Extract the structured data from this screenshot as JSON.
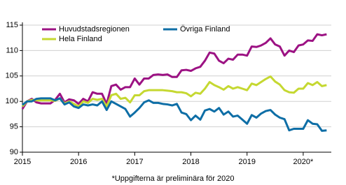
{
  "chart_data": {
    "type": "line",
    "footnote": "*Uppgifterna är preliminära för 2020",
    "x": [
      2015,
      2015.083,
      2015.167,
      2015.25,
      2015.333,
      2015.417,
      2015.5,
      2015.583,
      2015.667,
      2015.75,
      2015.833,
      2015.917,
      2016,
      2016.083,
      2016.167,
      2016.25,
      2016.333,
      2016.417,
      2016.5,
      2016.583,
      2016.667,
      2016.75,
      2016.833,
      2016.917,
      2017,
      2017.083,
      2017.167,
      2017.25,
      2017.333,
      2017.417,
      2017.5,
      2017.583,
      2017.667,
      2017.75,
      2017.833,
      2017.917,
      2018,
      2018.083,
      2018.167,
      2018.25,
      2018.333,
      2018.417,
      2018.5,
      2018.583,
      2018.667,
      2018.75,
      2018.833,
      2018.917,
      2019,
      2019.083,
      2019.167,
      2019.25,
      2019.333,
      2019.417,
      2019.5,
      2019.583,
      2019.667,
      2019.75,
      2019.833,
      2019.917,
      2020,
      2020.083,
      2020.167,
      2020.25,
      2020.333,
      2020.417
    ],
    "xlim": [
      2015,
      2020.5
    ],
    "xticks": [
      2015,
      2016,
      2017,
      2018,
      2019,
      {
        "value": 2020,
        "label": "2020*"
      }
    ],
    "ylim": [
      90,
      115
    ],
    "yticks": [
      90,
      95,
      100,
      105,
      110,
      115
    ],
    "grid": true,
    "legend": "upper left",
    "series": [
      {
        "name": "Huvudstadsregionen",
        "color": "#9c1283",
        "values": [
          98.5,
          100,
          100.5,
          99.8,
          99.6,
          99.6,
          99.6,
          100.3,
          101.5,
          99.8,
          100.4,
          100.2,
          99.5,
          100.5,
          100,
          101.8,
          101.5,
          101.5,
          99.5,
          103,
          103.3,
          102.3,
          102.8,
          102.8,
          104.5,
          103.3,
          104.5,
          104.5,
          105.2,
          105.3,
          105.2,
          105.3,
          104.8,
          104.8,
          106.1,
          106.2,
          106,
          106.5,
          106.8,
          108,
          109.6,
          109.4,
          108,
          107.5,
          108.4,
          108.2,
          109.2,
          109.2,
          109,
          110.8,
          110.7,
          111,
          111.5,
          112.4,
          111.2,
          110.8,
          109,
          110,
          109.7,
          111,
          111.2,
          112,
          111.9,
          113.2,
          113,
          113.2
        ]
      },
      {
        "name": "Hela Finland",
        "color": "#c5d831",
        "values": [
          99,
          100,
          100.3,
          100.2,
          100.2,
          100.2,
          100.2,
          100.1,
          100.6,
          99.6,
          100,
          99.5,
          99,
          100,
          99.7,
          100.5,
          100.3,
          100.5,
          99,
          101.2,
          101.5,
          100.5,
          100.7,
          99.8,
          101.2,
          101.2,
          102,
          102.2,
          102.2,
          102.2,
          102.2,
          102.1,
          102,
          101.8,
          101.8,
          101.6,
          101,
          101.7,
          101.5,
          102.5,
          103.8,
          103.2,
          102.8,
          102.3,
          103,
          102.5,
          102.8,
          102.5,
          102.2,
          103.5,
          103.2,
          103.8,
          104.4,
          104.9,
          103.9,
          103.3,
          102.2,
          101.8,
          101.7,
          102.5,
          102.5,
          103.6,
          103.2,
          103.8,
          103,
          103.2
        ]
      },
      {
        "name": "Övriga Finland",
        "color": "#0e6ea6",
        "values": [
          99.3,
          100,
          100,
          100.5,
          100.6,
          100.6,
          100.6,
          100.2,
          100.6,
          99.4,
          99.8,
          99,
          98.7,
          99.4,
          99.2,
          99.4,
          99.2,
          100,
          98.3,
          100,
          99.5,
          99,
          98.5,
          97,
          97.8,
          98.7,
          99.8,
          100.2,
          99.7,
          99.7,
          99.5,
          99.4,
          99.2,
          99.5,
          97.8,
          97.5,
          96.3,
          97.2,
          96.4,
          98.2,
          98.5,
          98,
          98.7,
          97.4,
          98,
          97,
          97.2,
          96.4,
          95.6,
          97.3,
          96.8,
          97.6,
          98.1,
          98.3,
          97.4,
          96.8,
          96.5,
          94.3,
          94.6,
          94.6,
          94.6,
          96.3,
          95.6,
          95.5,
          94.2,
          94.3
        ]
      }
    ]
  }
}
